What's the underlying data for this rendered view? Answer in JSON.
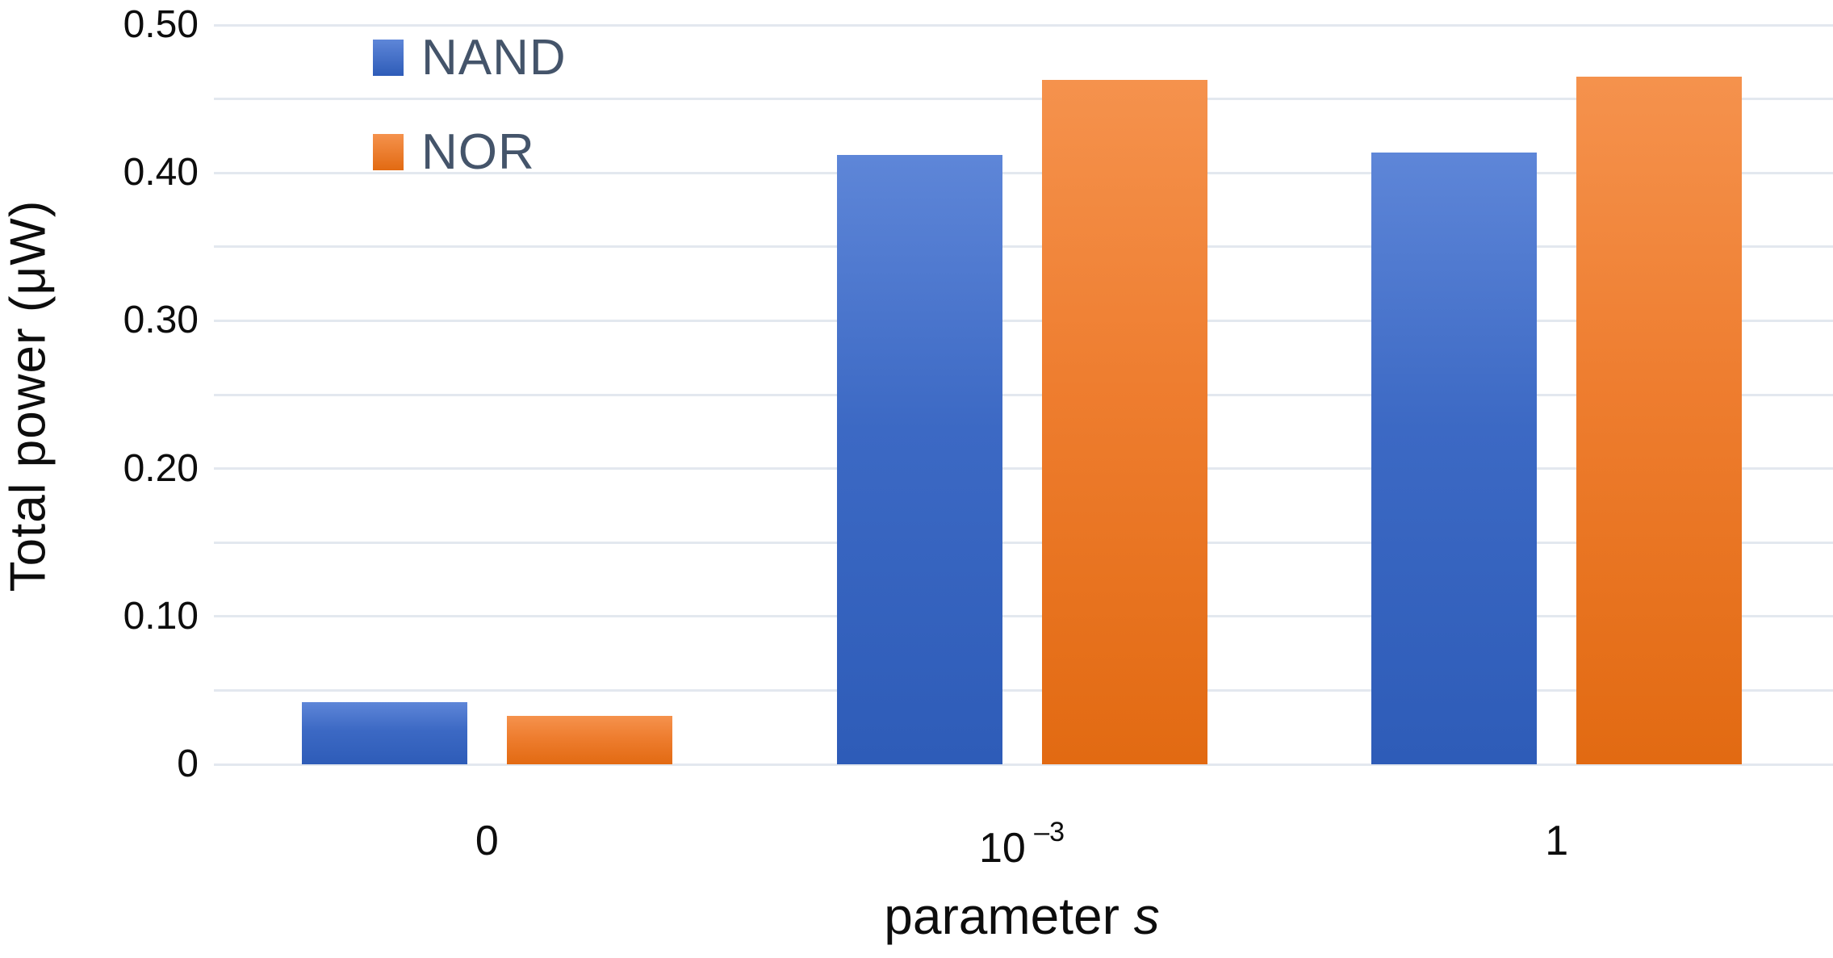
{
  "chart_data": {
    "type": "bar",
    "title": "",
    "xlabel": "parameter s",
    "xlabel_render": {
      "base": "parameter",
      "var": "s"
    },
    "ylabel": "Total power (μW)",
    "categories": [
      "0",
      "10⁻³",
      "1"
    ],
    "categories_render": [
      {
        "base": "0",
        "sup": ""
      },
      {
        "base": "10",
        "sup": "–3"
      },
      {
        "base": "1",
        "sup": ""
      }
    ],
    "series": [
      {
        "name": "NAND",
        "color": "#4472C4",
        "color_top": "#5E86D8",
        "color_bottom": "#2E5CB8",
        "values": [
          0.042,
          0.412,
          0.414
        ]
      },
      {
        "name": "NOR",
        "color": "#ED7D31",
        "color_top": "#F5924D",
        "color_bottom": "#E26A12",
        "values": [
          0.033,
          0.463,
          0.465
        ]
      }
    ],
    "ylim": [
      0,
      0.5
    ],
    "ytick_step": 0.1,
    "gridline_step": 0.05,
    "yticks": [
      {
        "label": "0.50",
        "value": 0.5
      },
      {
        "label": "0.40",
        "value": 0.4
      },
      {
        "label": "0.30",
        "value": 0.3
      },
      {
        "label": "0.20",
        "value": 0.2
      },
      {
        "label": "0.10",
        "value": 0.1
      },
      {
        "label": "0",
        "value": 0.0
      }
    ],
    "grid": true,
    "legend_position": "top-left-inside",
    "colors": {
      "grid": "#E3E8EF",
      "axis_text": "#0D0D0D",
      "legend_text": "#44546A",
      "background": "#FFFFFF"
    }
  }
}
